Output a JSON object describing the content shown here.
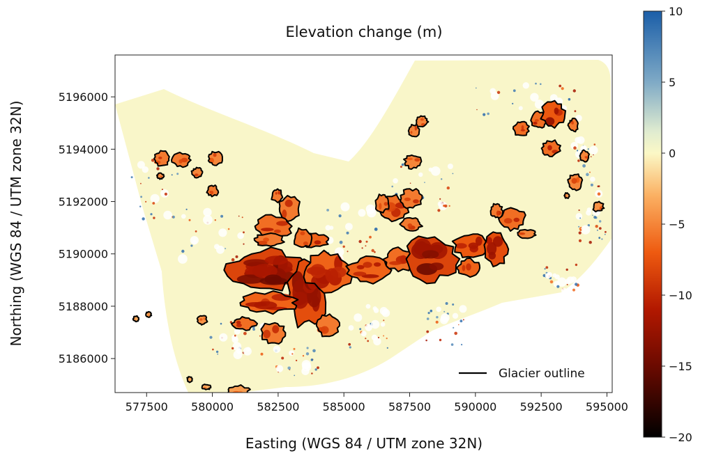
{
  "chart_data": {
    "type": "heatmap",
    "title": "Elevation change (m)",
    "xlabel": "Easting (WGS 84 / UTM zone 32N)",
    "ylabel": "Northing (WGS 84 / UTM zone 32N)",
    "xlim": [
      576300,
      595200
    ],
    "ylim": [
      5184700,
      5197600
    ],
    "xticks": [
      577500,
      580000,
      582500,
      585000,
      587500,
      590000,
      592500,
      595000
    ],
    "xtick_labels": [
      "577500",
      "580000",
      "582500",
      "585000",
      "587500",
      "590000",
      "592500",
      "595000"
    ],
    "yticks": [
      5186000,
      5188000,
      5190000,
      5192000,
      5194000,
      5196000
    ],
    "ytick_labels": [
      "5186000",
      "5188000",
      "5190000",
      "5192000",
      "5194000",
      "5196000"
    ],
    "colorbar": {
      "label": "",
      "range": [
        -20,
        10
      ],
      "ticks": [
        10,
        5,
        0,
        -5,
        -10,
        -15,
        -20
      ],
      "tick_labels": [
        "10",
        "5",
        "0",
        "−5",
        "−10",
        "−15",
        "−20"
      ],
      "colormap": [
        {
          "value": 10,
          "color": "#1b5ea8"
        },
        {
          "value": 5,
          "color": "#7faac6"
        },
        {
          "value": 1.5,
          "color": "#e0ecd0"
        },
        {
          "value": 0,
          "color": "#fbf8c6"
        },
        {
          "value": -3,
          "color": "#fbb062"
        },
        {
          "value": -7,
          "color": "#ee5a10"
        },
        {
          "value": -11,
          "color": "#b21800"
        },
        {
          "value": -15,
          "color": "#6b0a00"
        },
        {
          "value": -20,
          "color": "#000000"
        }
      ]
    },
    "legend": {
      "entries": [
        "Glacier outline"
      ],
      "placement": "lower-right"
    },
    "grid": false
  }
}
